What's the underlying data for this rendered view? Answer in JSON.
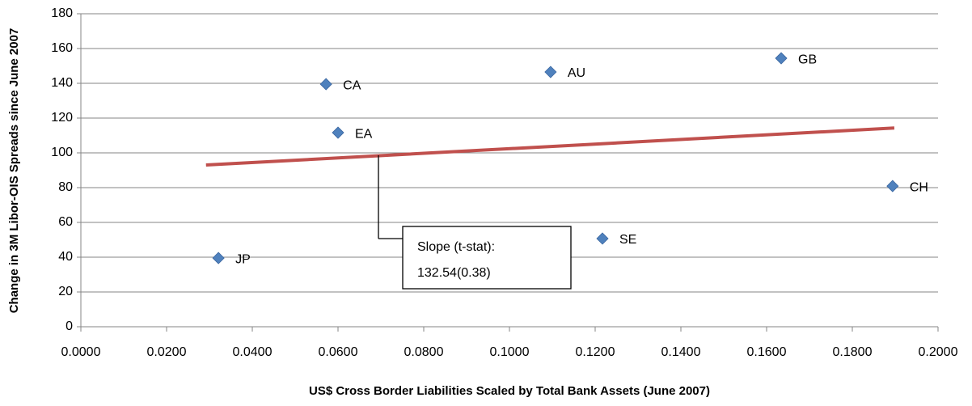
{
  "chart_data": {
    "type": "scatter",
    "x_label": "US$ Cross Border Liabilities Scaled by Total Bank Assets (June 2007)",
    "y_label": "Change in 3M Libor-OIS Spreads since June 2007",
    "series": [
      {
        "color": "#4f81bd",
        "labels": [
          "JP",
          "CA",
          "EA",
          "AU",
          "GB",
          "CH",
          "SE"
        ],
        "x": [
          0.0321,
          0.0572,
          0.06,
          0.1096,
          0.1634,
          0.1894,
          0.1217
        ],
        "values": [
          39.5,
          139.5,
          111.6,
          146.5,
          154.4,
          80.9,
          50.7
        ]
      }
    ],
    "trendline": {
      "color": "#c0504d",
      "x": [
        0.0292,
        0.1898
      ],
      "values": [
        93.0,
        114.3
      ]
    },
    "annotation": [
      "Slope (t-stat):",
      "132.54(0.38)"
    ],
    "xlim": [
      0,
      0.2
    ],
    "ylim": [
      0,
      180
    ],
    "xticks": [
      {
        "value": 0,
        "label": "0.0000"
      },
      {
        "value": 0.02,
        "label": "0.0200"
      },
      {
        "value": 0.04,
        "label": "0.0400"
      },
      {
        "value": 0.06,
        "label": "0.0600"
      },
      {
        "value": 0.08,
        "label": "0.0800"
      },
      {
        "value": 0.1,
        "label": "0.1000"
      },
      {
        "value": 0.12,
        "label": "0.1200"
      },
      {
        "value": 0.14,
        "label": "0.1400"
      },
      {
        "value": 0.16,
        "label": "0.1600"
      },
      {
        "value": 0.18,
        "label": "0.1800"
      },
      {
        "value": 0.2,
        "label": "0.2000"
      }
    ],
    "yticks": [
      0,
      20,
      40,
      60,
      80,
      100,
      120,
      140,
      160,
      180
    ],
    "grid": true
  }
}
